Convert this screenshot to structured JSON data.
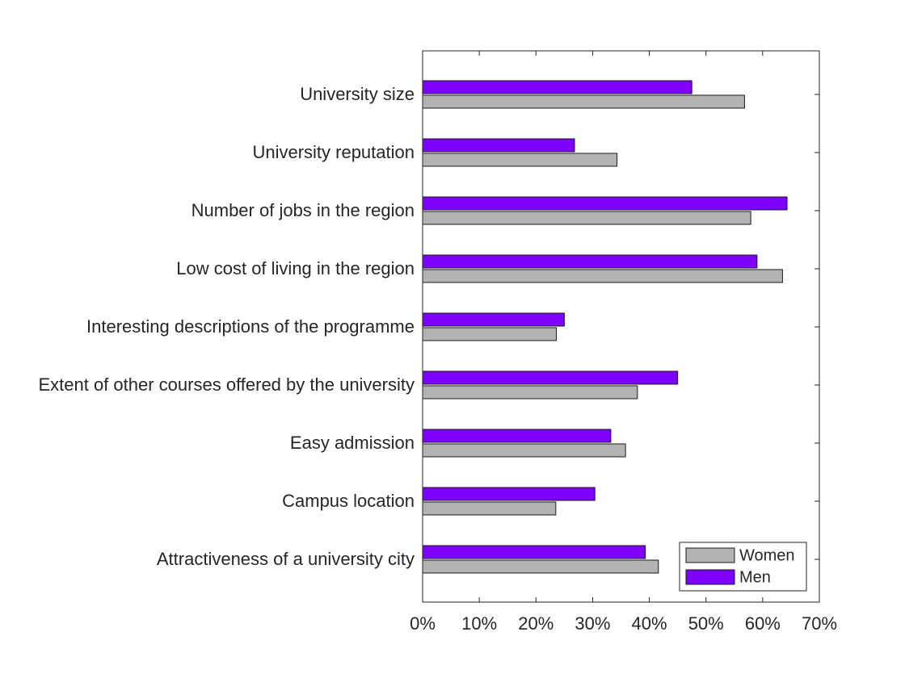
{
  "chart_data": {
    "type": "bar",
    "orientation": "horizontal",
    "categories": [
      "University size",
      "University reputation",
      "Number of jobs in the region",
      "Low cost of living in the region",
      "Interesting descriptions of the programme",
      "Extent of other courses offered by the university",
      "Easy admission",
      "Campus location",
      "Attractiveness of a university city"
    ],
    "series": [
      {
        "name": "Women",
        "color": "#b3b3b3",
        "values": [
          56.8,
          34.3,
          57.9,
          63.5,
          23.6,
          37.9,
          35.8,
          23.5,
          41.6
        ]
      },
      {
        "name": "Men",
        "color": "#7e00ff",
        "values": [
          47.5,
          26.8,
          64.3,
          59.0,
          25.0,
          45.0,
          33.2,
          30.4,
          39.3
        ]
      }
    ],
    "xlim": [
      0,
      70
    ],
    "x_ticks": [
      0,
      10,
      20,
      30,
      40,
      50,
      60,
      70
    ],
    "x_tick_labels": [
      "0%",
      "10%",
      "20%",
      "30%",
      "40%",
      "50%",
      "60%",
      "70%"
    ],
    "title": "",
    "xlabel": "",
    "ylabel": "",
    "grid": false,
    "legend": {
      "position": "bottom-right",
      "entries": [
        "Women",
        "Men"
      ]
    }
  }
}
